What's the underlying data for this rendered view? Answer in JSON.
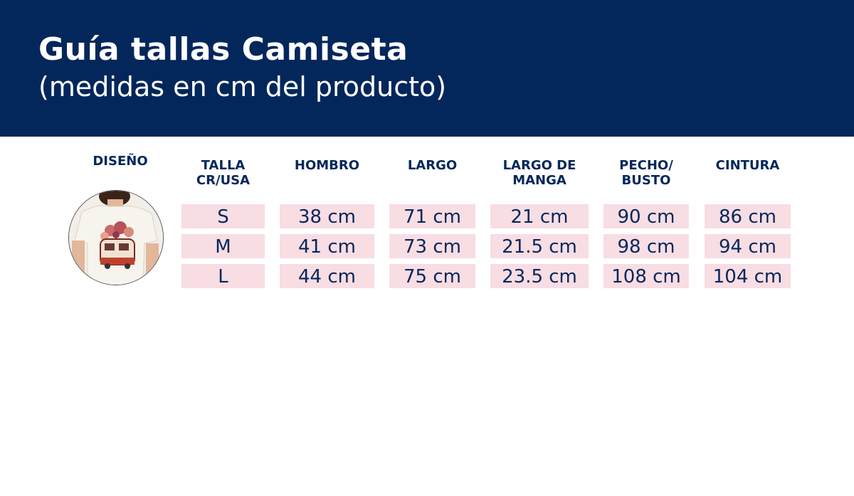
{
  "header": {
    "title": "Guía tallas Camiseta",
    "subtitle": "(medidas en cm del producto)",
    "background": "#03275b"
  },
  "table": {
    "design_header": "DISEÑO",
    "columns": [
      "TALLA\nCR/USA",
      "HOMBRO",
      "LARGO",
      "LARGO DE\nMANGA",
      "PECHO/\nBUSTO",
      "CINTURA"
    ],
    "rows": [
      [
        "S",
        "38 cm",
        "71 cm",
        "21 cm",
        "90 cm",
        "86 cm"
      ],
      [
        "M",
        "41 cm",
        "73 cm",
        "21.5 cm",
        "98 cm",
        "94 cm"
      ],
      [
        "L",
        "44 cm",
        "75 cm",
        "23.5 cm",
        "108 cm",
        "104 cm"
      ]
    ],
    "cell_color": "#f8dde3",
    "text_color": "#03275b"
  },
  "design_image": {
    "icon": "tshirt-van-print-photo"
  }
}
